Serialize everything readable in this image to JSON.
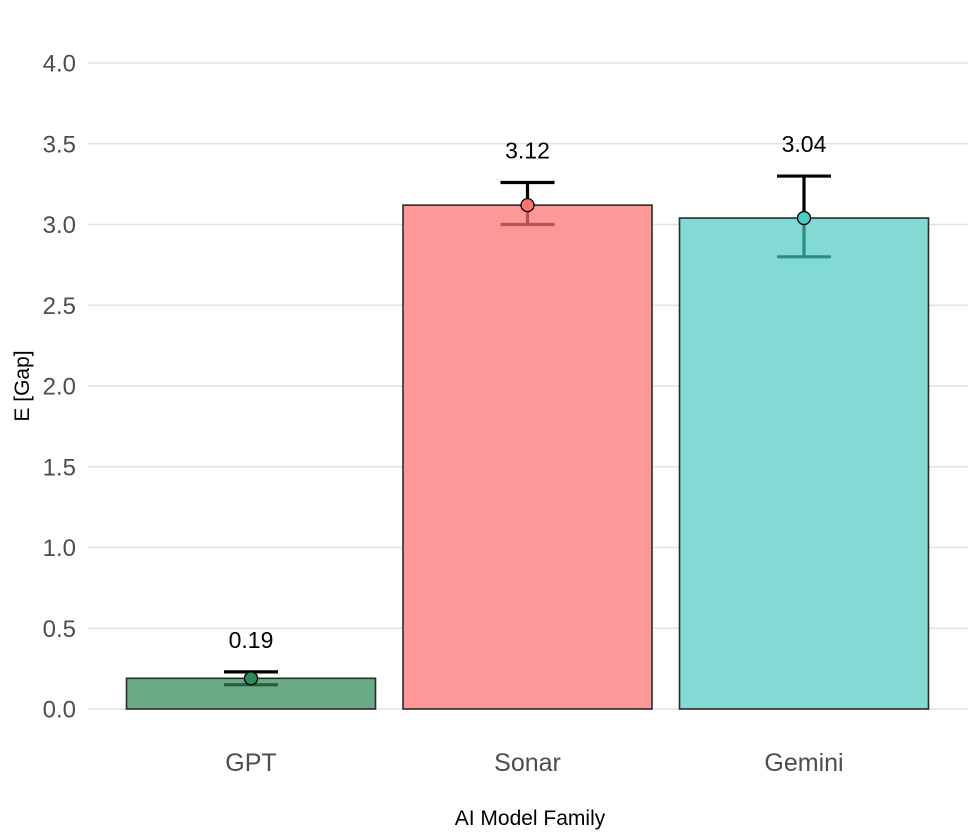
{
  "chart_data": {
    "type": "bar",
    "title": "",
    "xlabel": "AI Model Family",
    "ylabel": "E [Gap]",
    "categories": [
      "GPT",
      "Sonar",
      "Gemini"
    ],
    "values": [
      0.19,
      3.12,
      3.04
    ],
    "data_labels": [
      "0.19",
      "3.12",
      "3.04"
    ],
    "error_bars": [
      {
        "low": 0.15,
        "high": 0.23
      },
      {
        "low": 3.0,
        "high": 3.26
      },
      {
        "low": 2.8,
        "high": 3.3
      }
    ],
    "ylim": [
      0,
      4
    ],
    "yticks": [
      "0.0",
      "0.5",
      "1.0",
      "1.5",
      "2.0",
      "2.5",
      "3.0",
      "3.5",
      "4.0"
    ],
    "grid": true,
    "legend": "none",
    "colors": {
      "bar_fill": [
        "#6aab85",
        "#fd9898",
        "#83dad4"
      ],
      "point_fill": [
        "#2e8b57",
        "#f8766d",
        "#4ecdc4"
      ],
      "error_bar_lower": [
        "#2b5e3e",
        "#b85450",
        "#2e8a84"
      ],
      "error_bar_upper": "#000000",
      "gridline": "#e3e3e3"
    }
  }
}
